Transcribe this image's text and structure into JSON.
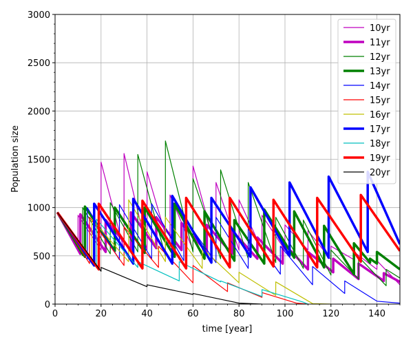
{
  "chart_data": {
    "type": "line",
    "title": "",
    "xlabel": "time [year]",
    "ylabel": "Population size",
    "xlim": [
      0,
      150
    ],
    "ylim": [
      0,
      3000
    ],
    "xticks": [
      0,
      20,
      40,
      60,
      80,
      100,
      120,
      140
    ],
    "yticks": [
      0,
      500,
      1000,
      1500,
      2000,
      2500,
      3000
    ],
    "grid": true,
    "legend_position": "top-right",
    "series": [
      {
        "name": "10yr",
        "color": "#bf00bf",
        "width": 1.2,
        "points": [
          [
            1,
            950
          ],
          [
            10,
            560
          ],
          [
            10,
            920
          ],
          [
            20,
            560
          ],
          [
            20,
            1470
          ],
          [
            30,
            560
          ],
          [
            30,
            1560
          ],
          [
            40,
            560
          ],
          [
            40,
            1370
          ],
          [
            50,
            560
          ],
          [
            50,
            1130
          ],
          [
            60,
            560
          ],
          [
            60,
            1430
          ],
          [
            70,
            560
          ],
          [
            70,
            1260
          ],
          [
            80,
            560
          ],
          [
            80,
            1080
          ],
          [
            90,
            560
          ],
          [
            90,
            920
          ],
          [
            100,
            560
          ],
          [
            100,
            820
          ],
          [
            110,
            560
          ],
          [
            110,
            760
          ],
          [
            120,
            460
          ],
          [
            120,
            600
          ],
          [
            130,
            460
          ],
          [
            130,
            540
          ],
          [
            140,
            360
          ],
          [
            140,
            450
          ],
          [
            150,
            200
          ]
        ]
      },
      {
        "name": "11yr",
        "color": "#bf00bf",
        "width": 3.5,
        "points": [
          [
            1,
            950
          ],
          [
            11,
            520
          ],
          [
            11,
            930
          ],
          [
            22,
            540
          ],
          [
            22,
            870
          ],
          [
            33,
            560
          ],
          [
            33,
            950
          ],
          [
            44,
            580
          ],
          [
            44,
            900
          ],
          [
            55,
            560
          ],
          [
            55,
            840
          ],
          [
            66,
            540
          ],
          [
            66,
            820
          ],
          [
            77,
            520
          ],
          [
            77,
            760
          ],
          [
            88,
            470
          ],
          [
            88,
            690
          ],
          [
            99,
            420
          ],
          [
            99,
            640
          ],
          [
            110,
            360
          ],
          [
            110,
            540
          ],
          [
            121,
            330
          ],
          [
            121,
            470
          ],
          [
            132,
            260
          ],
          [
            132,
            420
          ],
          [
            143,
            240
          ],
          [
            143,
            320
          ],
          [
            150,
            230
          ]
        ]
      },
      {
        "name": "12yr",
        "color": "#008000",
        "width": 1.2,
        "points": [
          [
            1,
            950
          ],
          [
            12,
            500
          ],
          [
            12,
            1000
          ],
          [
            24,
            520
          ],
          [
            24,
            1050
          ],
          [
            36,
            540
          ],
          [
            36,
            1550
          ],
          [
            48,
            500
          ],
          [
            48,
            1690
          ],
          [
            60,
            540
          ],
          [
            60,
            1300
          ],
          [
            72,
            470
          ],
          [
            72,
            1390
          ],
          [
            84,
            470
          ],
          [
            84,
            1260
          ],
          [
            96,
            430
          ],
          [
            96,
            900
          ],
          [
            108,
            370
          ],
          [
            108,
            870
          ],
          [
            120,
            300
          ],
          [
            120,
            560
          ],
          [
            132,
            260
          ],
          [
            132,
            490
          ],
          [
            144,
            190
          ],
          [
            144,
            360
          ],
          [
            150,
            270
          ]
        ]
      },
      {
        "name": "13yr",
        "color": "#008000",
        "width": 3.5,
        "points": [
          [
            1,
            950
          ],
          [
            13,
            490
          ],
          [
            13,
            1010
          ],
          [
            26,
            550
          ],
          [
            26,
            1000
          ],
          [
            39,
            530
          ],
          [
            39,
            1000
          ],
          [
            52,
            490
          ],
          [
            52,
            1040
          ],
          [
            65,
            470
          ],
          [
            65,
            960
          ],
          [
            78,
            450
          ],
          [
            78,
            870
          ],
          [
            91,
            420
          ],
          [
            91,
            980
          ],
          [
            104,
            480
          ],
          [
            104,
            960
          ],
          [
            117,
            380
          ],
          [
            117,
            810
          ],
          [
            130,
            310
          ],
          [
            130,
            630
          ],
          [
            137,
            430
          ],
          [
            137,
            470
          ],
          [
            140,
            420
          ],
          [
            140,
            540
          ],
          [
            150,
            360
          ]
        ]
      },
      {
        "name": "14yr",
        "color": "#0000ff",
        "width": 1.2,
        "points": [
          [
            1,
            950
          ],
          [
            14,
            460
          ],
          [
            14,
            1000
          ],
          [
            28,
            460
          ],
          [
            28,
            1030
          ],
          [
            42,
            470
          ],
          [
            42,
            1040
          ],
          [
            56,
            450
          ],
          [
            56,
            900
          ],
          [
            70,
            430
          ],
          [
            70,
            900
          ],
          [
            84,
            370
          ],
          [
            84,
            780
          ],
          [
            98,
            310
          ],
          [
            98,
            600
          ],
          [
            112,
            200
          ],
          [
            112,
            390
          ],
          [
            126,
            110
          ],
          [
            126,
            240
          ],
          [
            140,
            30
          ],
          [
            150,
            10
          ]
        ]
      },
      {
        "name": "15yr",
        "color": "#ff0000",
        "width": 1.2,
        "points": [
          [
            1,
            950
          ],
          [
            15,
            420
          ],
          [
            15,
            900
          ],
          [
            30,
            400
          ],
          [
            30,
            800
          ],
          [
            45,
            380
          ],
          [
            45,
            600
          ],
          [
            60,
            220
          ],
          [
            60,
            400
          ],
          [
            75,
            130
          ],
          [
            75,
            220
          ],
          [
            90,
            70
          ],
          [
            90,
            120
          ],
          [
            105,
            10
          ],
          [
            110,
            0
          ]
        ]
      },
      {
        "name": "16yr",
        "color": "#bfbf00",
        "width": 1.2,
        "points": [
          [
            1,
            950
          ],
          [
            16,
            420
          ],
          [
            16,
            880
          ],
          [
            32,
            440
          ],
          [
            32,
            1080
          ],
          [
            48,
            440
          ],
          [
            48,
            900
          ],
          [
            64,
            370
          ],
          [
            64,
            580
          ],
          [
            80,
            220
          ],
          [
            80,
            330
          ],
          [
            96,
            90
          ],
          [
            96,
            230
          ],
          [
            112,
            5
          ],
          [
            120,
            0
          ]
        ]
      },
      {
        "name": "17yr",
        "color": "#0000ff",
        "width": 3.5,
        "points": [
          [
            1,
            950
          ],
          [
            17,
            400
          ],
          [
            17,
            1040
          ],
          [
            34,
            420
          ],
          [
            34,
            1090
          ],
          [
            51,
            420
          ],
          [
            51,
            1120
          ],
          [
            68,
            430
          ],
          [
            68,
            1100
          ],
          [
            85,
            490
          ],
          [
            85,
            1210
          ],
          [
            102,
            500
          ],
          [
            102,
            1260
          ],
          [
            119,
            480
          ],
          [
            119,
            1320
          ],
          [
            136,
            540
          ],
          [
            136,
            1370
          ],
          [
            150,
            620
          ]
        ]
      },
      {
        "name": "18yr",
        "color": "#00bfbf",
        "width": 1.2,
        "points": [
          [
            1,
            950
          ],
          [
            18,
            380
          ],
          [
            18,
            880
          ],
          [
            36,
            380
          ],
          [
            36,
            440
          ],
          [
            54,
            240
          ],
          [
            54,
            440
          ],
          [
            72,
            230
          ],
          [
            72,
            240
          ],
          [
            90,
            80
          ],
          [
            90,
            150
          ],
          [
            108,
            20
          ],
          [
            110,
            0
          ]
        ]
      },
      {
        "name": "19yr",
        "color": "#ff0000",
        "width": 3.5,
        "points": [
          [
            1,
            950
          ],
          [
            19,
            360
          ],
          [
            19,
            1040
          ],
          [
            38,
            370
          ],
          [
            38,
            1070
          ],
          [
            57,
            370
          ],
          [
            57,
            1100
          ],
          [
            76,
            380
          ],
          [
            76,
            1100
          ],
          [
            95,
            390
          ],
          [
            95,
            1080
          ],
          [
            114,
            380
          ],
          [
            114,
            1100
          ],
          [
            133,
            440
          ],
          [
            133,
            1130
          ],
          [
            150,
            550
          ]
        ]
      },
      {
        "name": "20yr",
        "color": "#000000",
        "width": 1.2,
        "points": [
          [
            1,
            950
          ],
          [
            20,
            340
          ],
          [
            20,
            380
          ],
          [
            40,
            180
          ],
          [
            40,
            200
          ],
          [
            60,
            100
          ],
          [
            60,
            110
          ],
          [
            80,
            10
          ],
          [
            90,
            0
          ]
        ]
      }
    ]
  }
}
